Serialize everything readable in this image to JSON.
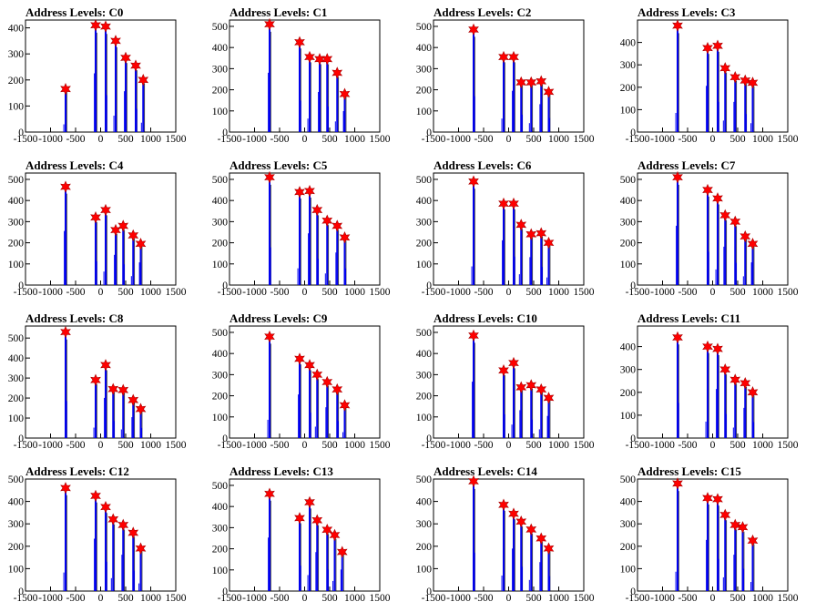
{
  "chart_data": [
    {
      "type": "bar",
      "title": "Address Levels: C0",
      "ylim": [
        0,
        430
      ],
      "yticks": [
        0,
        100,
        200,
        300,
        400
      ],
      "xlim": [
        -1500,
        1500
      ],
      "xticks": [
        -1500,
        -1000,
        -500,
        0,
        500,
        1000,
        1500
      ],
      "peaks": [
        [
          -700,
          165
        ],
        [
          -100,
          410
        ],
        [
          100,
          405
        ],
        [
          300,
          350
        ],
        [
          500,
          285
        ],
        [
          700,
          255
        ],
        [
          850,
          200
        ]
      ]
    },
    {
      "type": "bar",
      "title": "Address Levels: C1",
      "ylim": [
        0,
        530
      ],
      "yticks": [
        0,
        100,
        200,
        300,
        400,
        500
      ],
      "xlim": [
        -1500,
        1500
      ],
      "xticks": [
        -1500,
        -1000,
        -500,
        0,
        500,
        1000,
        1500
      ],
      "peaks": [
        [
          -700,
          510
        ],
        [
          -100,
          425
        ],
        [
          100,
          355
        ],
        [
          300,
          345
        ],
        [
          450,
          345
        ],
        [
          650,
          280
        ],
        [
          800,
          180
        ]
      ]
    },
    {
      "type": "bar",
      "title": "Address Levels: C2",
      "ylim": [
        0,
        530
      ],
      "yticks": [
        0,
        100,
        200,
        300,
        400,
        500
      ],
      "xlim": [
        -1500,
        1500
      ],
      "xticks": [
        -1500,
        -1000,
        -500,
        0,
        500,
        1000,
        1500
      ],
      "peaks": [
        [
          -700,
          485
        ],
        [
          -100,
          355
        ],
        [
          100,
          355
        ],
        [
          250,
          235
        ],
        [
          450,
          235
        ],
        [
          650,
          240
        ],
        [
          800,
          190
        ]
      ]
    },
    {
      "type": "bar",
      "title": "Address Levels: C3",
      "ylim": [
        0,
        500
      ],
      "yticks": [
        0,
        100,
        200,
        300,
        400
      ],
      "xlim": [
        -1500,
        1500
      ],
      "xticks": [
        -1500,
        -1000,
        -500,
        0,
        500,
        1000,
        1500
      ],
      "peaks": [
        [
          -700,
          475
        ],
        [
          -100,
          375
        ],
        [
          100,
          385
        ],
        [
          250,
          285
        ],
        [
          450,
          245
        ],
        [
          650,
          230
        ],
        [
          800,
          220
        ]
      ]
    },
    {
      "type": "bar",
      "title": "Address Levels: C4",
      "ylim": [
        0,
        530
      ],
      "yticks": [
        0,
        100,
        200,
        300,
        400,
        500
      ],
      "xlim": [
        -1500,
        1500
      ],
      "xticks": [
        -1500,
        -1000,
        -500,
        0,
        500,
        1000,
        1500
      ],
      "peaks": [
        [
          -700,
          465
        ],
        [
          -100,
          320
        ],
        [
          100,
          355
        ],
        [
          300,
          260
        ],
        [
          450,
          280
        ],
        [
          650,
          235
        ],
        [
          800,
          195
        ]
      ]
    },
    {
      "type": "bar",
      "title": "Address Levels: C5",
      "ylim": [
        0,
        530
      ],
      "yticks": [
        0,
        100,
        200,
        300,
        400,
        500
      ],
      "xlim": [
        -1500,
        1500
      ],
      "xticks": [
        -1500,
        -1000,
        -500,
        0,
        500,
        1000,
        1500
      ],
      "peaks": [
        [
          -700,
          510
        ],
        [
          -100,
          440
        ],
        [
          100,
          445
        ],
        [
          250,
          355
        ],
        [
          450,
          305
        ],
        [
          650,
          280
        ],
        [
          800,
          225
        ]
      ]
    },
    {
      "type": "bar",
      "title": "Address Levels: C6",
      "ylim": [
        0,
        530
      ],
      "yticks": [
        0,
        100,
        200,
        300,
        400,
        500
      ],
      "xlim": [
        -1500,
        1500
      ],
      "xticks": [
        -1500,
        -1000,
        -500,
        0,
        500,
        1000,
        1500
      ],
      "peaks": [
        [
          -700,
          490
        ],
        [
          -100,
          385
        ],
        [
          100,
          385
        ],
        [
          250,
          285
        ],
        [
          450,
          240
        ],
        [
          650,
          245
        ],
        [
          800,
          200
        ]
      ]
    },
    {
      "type": "bar",
      "title": "Address Levels: C7",
      "ylim": [
        0,
        530
      ],
      "yticks": [
        0,
        100,
        200,
        300,
        400,
        500
      ],
      "xlim": [
        -1500,
        1500
      ],
      "xticks": [
        -1500,
        -1000,
        -500,
        0,
        500,
        1000,
        1500
      ],
      "peaks": [
        [
          -700,
          510
        ],
        [
          -100,
          450
        ],
        [
          100,
          410
        ],
        [
          250,
          330
        ],
        [
          450,
          300
        ],
        [
          650,
          230
        ],
        [
          800,
          195
        ]
      ]
    },
    {
      "type": "bar",
      "title": "Address Levels: C8",
      "ylim": [
        0,
        560
      ],
      "yticks": [
        0,
        100,
        200,
        300,
        400,
        500
      ],
      "xlim": [
        -1500,
        1500
      ],
      "xticks": [
        -1500,
        -1000,
        -500,
        0,
        500,
        1000,
        1500
      ],
      "peaks": [
        [
          -700,
          530
        ],
        [
          -100,
          290
        ],
        [
          100,
          365
        ],
        [
          250,
          245
        ],
        [
          450,
          240
        ],
        [
          650,
          190
        ],
        [
          800,
          145
        ]
      ]
    },
    {
      "type": "bar",
      "title": "Address Levels: C9",
      "ylim": [
        0,
        530
      ],
      "yticks": [
        0,
        100,
        200,
        300,
        400,
        500
      ],
      "xlim": [
        -1500,
        1500
      ],
      "xticks": [
        -1500,
        -1000,
        -500,
        0,
        500,
        1000,
        1500
      ],
      "peaks": [
        [
          -700,
          480
        ],
        [
          -100,
          375
        ],
        [
          100,
          345
        ],
        [
          250,
          300
        ],
        [
          450,
          265
        ],
        [
          650,
          230
        ],
        [
          800,
          155
        ]
      ]
    },
    {
      "type": "bar",
      "title": "Address Levels: C10",
      "ylim": [
        0,
        530
      ],
      "yticks": [
        0,
        100,
        200,
        300,
        400,
        500
      ],
      "xlim": [
        -1500,
        1500
      ],
      "xticks": [
        -1500,
        -1000,
        -500,
        0,
        500,
        1000,
        1500
      ],
      "peaks": [
        [
          -700,
          485
        ],
        [
          -100,
          320
        ],
        [
          100,
          355
        ],
        [
          250,
          240
        ],
        [
          450,
          250
        ],
        [
          650,
          230
        ],
        [
          800,
          190
        ]
      ]
    },
    {
      "type": "bar",
      "title": "Address Levels: C11",
      "ylim": [
        0,
        490
      ],
      "yticks": [
        0,
        100,
        200,
        300,
        400
      ],
      "xlim": [
        -1500,
        1500
      ],
      "xticks": [
        -1500,
        -1000,
        -500,
        0,
        500,
        1000,
        1500
      ],
      "peaks": [
        [
          -700,
          440
        ],
        [
          -100,
          400
        ],
        [
          100,
          390
        ],
        [
          250,
          300
        ],
        [
          450,
          255
        ],
        [
          650,
          240
        ],
        [
          800,
          200
        ]
      ]
    },
    {
      "type": "bar",
      "title": "Address Levels: C12",
      "ylim": [
        0,
        500
      ],
      "yticks": [
        0,
        100,
        200,
        300,
        400,
        500
      ],
      "xlim": [
        -1500,
        1500
      ],
      "xticks": [
        -1500,
        -1000,
        -500,
        0,
        500,
        1000,
        1500
      ],
      "peaks": [
        [
          -700,
          460
        ],
        [
          -100,
          425
        ],
        [
          100,
          375
        ],
        [
          250,
          320
        ],
        [
          450,
          295
        ],
        [
          650,
          260
        ],
        [
          800,
          190
        ]
      ]
    },
    {
      "type": "bar",
      "title": "Address Levels: C13",
      "ylim": [
        0,
        530
      ],
      "yticks": [
        0,
        100,
        200,
        300,
        400,
        500
      ],
      "xlim": [
        -1500,
        1500
      ],
      "xticks": [
        -1500,
        -1000,
        -500,
        0,
        500,
        1000,
        1500
      ],
      "peaks": [
        [
          -700,
          460
        ],
        [
          -100,
          345
        ],
        [
          100,
          420
        ],
        [
          250,
          335
        ],
        [
          450,
          290
        ],
        [
          600,
          265
        ],
        [
          750,
          185
        ]
      ]
    },
    {
      "type": "bar",
      "title": "Address Levels: C14",
      "ylim": [
        0,
        500
      ],
      "yticks": [
        0,
        100,
        200,
        300,
        400,
        500
      ],
      "xlim": [
        -1500,
        1500
      ],
      "xticks": [
        -1500,
        -1000,
        -500,
        0,
        500,
        1000,
        1500
      ],
      "peaks": [
        [
          -700,
          490
        ],
        [
          -100,
          385
        ],
        [
          100,
          345
        ],
        [
          250,
          310
        ],
        [
          450,
          275
        ],
        [
          650,
          235
        ],
        [
          800,
          190
        ]
      ]
    },
    {
      "type": "bar",
      "title": "Address Levels: C15",
      "ylim": [
        0,
        500
      ],
      "yticks": [
        0,
        100,
        200,
        300,
        400,
        500
      ],
      "xlim": [
        -1500,
        1500
      ],
      "xticks": [
        -1500,
        -1000,
        -500,
        0,
        500,
        1000,
        1500
      ],
      "peaks": [
        [
          -700,
          480
        ],
        [
          -100,
          415
        ],
        [
          100,
          410
        ],
        [
          250,
          340
        ],
        [
          450,
          295
        ],
        [
          600,
          285
        ],
        [
          800,
          225
        ]
      ]
    }
  ],
  "colors": {
    "bar": "#0000ee",
    "marker": "#ff0000",
    "axis": "#000000"
  }
}
